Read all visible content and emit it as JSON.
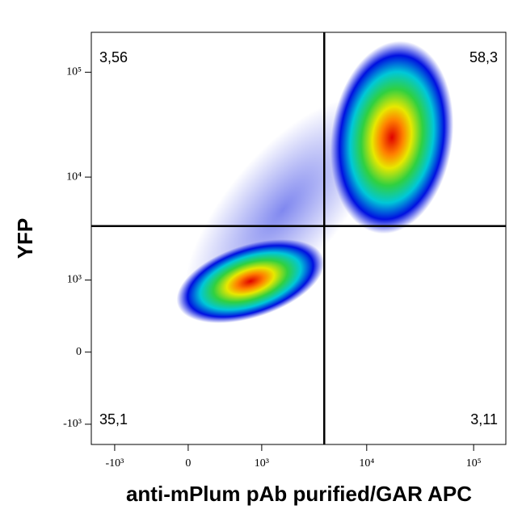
{
  "chart_data": {
    "type": "density",
    "x_label": "anti-mPlum pAb purified/GAR APC",
    "y_label": "YFP",
    "xlim": [
      -1700,
      200000
    ],
    "ylim": [
      -1600,
      240000
    ],
    "xticks": [
      {
        "value": -1000,
        "label": "-10³"
      },
      0,
      {
        "value": 1000,
        "label": "10³"
      },
      {
        "value": 10000,
        "label": "10⁴"
      },
      {
        "value": 100000,
        "label": "10⁵"
      }
    ],
    "yticks": [
      {
        "value": -1000,
        "label": "-10³"
      },
      0,
      {
        "value": 1000,
        "label": "10³"
      },
      {
        "value": 10000,
        "label": "10⁴"
      },
      {
        "value": 100000,
        "label": "10⁵"
      }
    ],
    "gates": {
      "x": 4000,
      "y": 3400
    },
    "quadrants": [
      {
        "position": "top-left",
        "value": 3.56,
        "label": "3,56"
      },
      {
        "position": "top-right",
        "value": 58.3,
        "label": "58,3"
      },
      {
        "position": "bottom-left",
        "value": 35.1,
        "label": "35,1"
      },
      {
        "position": "bottom-right",
        "value": 3.11,
        "label": "3,11"
      }
    ]
  }
}
